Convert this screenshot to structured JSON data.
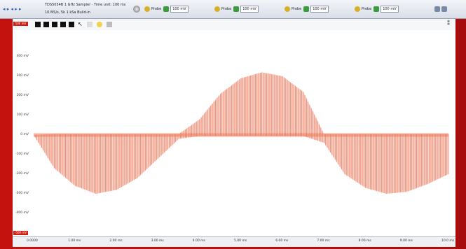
{
  "window": {
    "title_line1": "TDS5054B 1 GHz Sampler · Time unit: 100 ms",
    "title_line2": "10 MS/s, 5k 1 kSa Build-in",
    "channels": [
      {
        "label": "Probe",
        "range": "100 mV",
        "active": true
      },
      {
        "label": "Probe",
        "range": "100 mV",
        "active": true
      },
      {
        "label": "Probe",
        "range": "100 mV",
        "active": true
      },
      {
        "label": "Probe",
        "range": "100 mV",
        "active": true
      }
    ]
  },
  "toolbar": {
    "icons": [
      "hand-tool",
      "zoom-in",
      "zoom-out",
      "fit-view",
      "measure",
      "cursor",
      "color",
      "settings",
      "lightbulb"
    ]
  },
  "chip_top": "500 mV",
  "chip_bottom": "-500 mV",
  "colors": {
    "accent": "#d21d13",
    "trace": "#f08a6c",
    "trace_dark": "#e8603e",
    "background": "#ffffff"
  },
  "chart_data": {
    "type": "line",
    "yticks": [
      "400 mV",
      "300 mV",
      "200 mV",
      "100 mV",
      "0 mV",
      "-100 mV",
      "-200 mV",
      "-300 mV",
      "-400 mV"
    ],
    "xticks": [
      "0.0000",
      "1.00 ms",
      "2.00 ms",
      "3.00 ms",
      "4.00 ms",
      "5.00 ms",
      "6.00 ms",
      "7.00 ms",
      "8.00 ms",
      "9.00 ms",
      "10.0 ms"
    ],
    "xlim": [
      0,
      10
    ],
    "ylim": [
      -500,
      500
    ],
    "grid": false,
    "series": [
      {
        "x": [
          0,
          0.5,
          1,
          1.5,
          2,
          2.5,
          3,
          3.5,
          4,
          4.5,
          5,
          5.5,
          6,
          6.5,
          7,
          7.5,
          8,
          8.5,
          9,
          9.5,
          10
        ],
        "upper": [
          0,
          5,
          5,
          5,
          5,
          5,
          5,
          5,
          80,
          210,
          290,
          320,
          300,
          220,
          5,
          5,
          5,
          5,
          5,
          5,
          5
        ],
        "lower": [
          0,
          -170,
          -260,
          -300,
          -280,
          -220,
          -120,
          -20,
          -5,
          -5,
          -5,
          -5,
          -5,
          -5,
          -40,
          -200,
          -270,
          -300,
          -290,
          -250,
          -200
        ]
      }
    ]
  }
}
